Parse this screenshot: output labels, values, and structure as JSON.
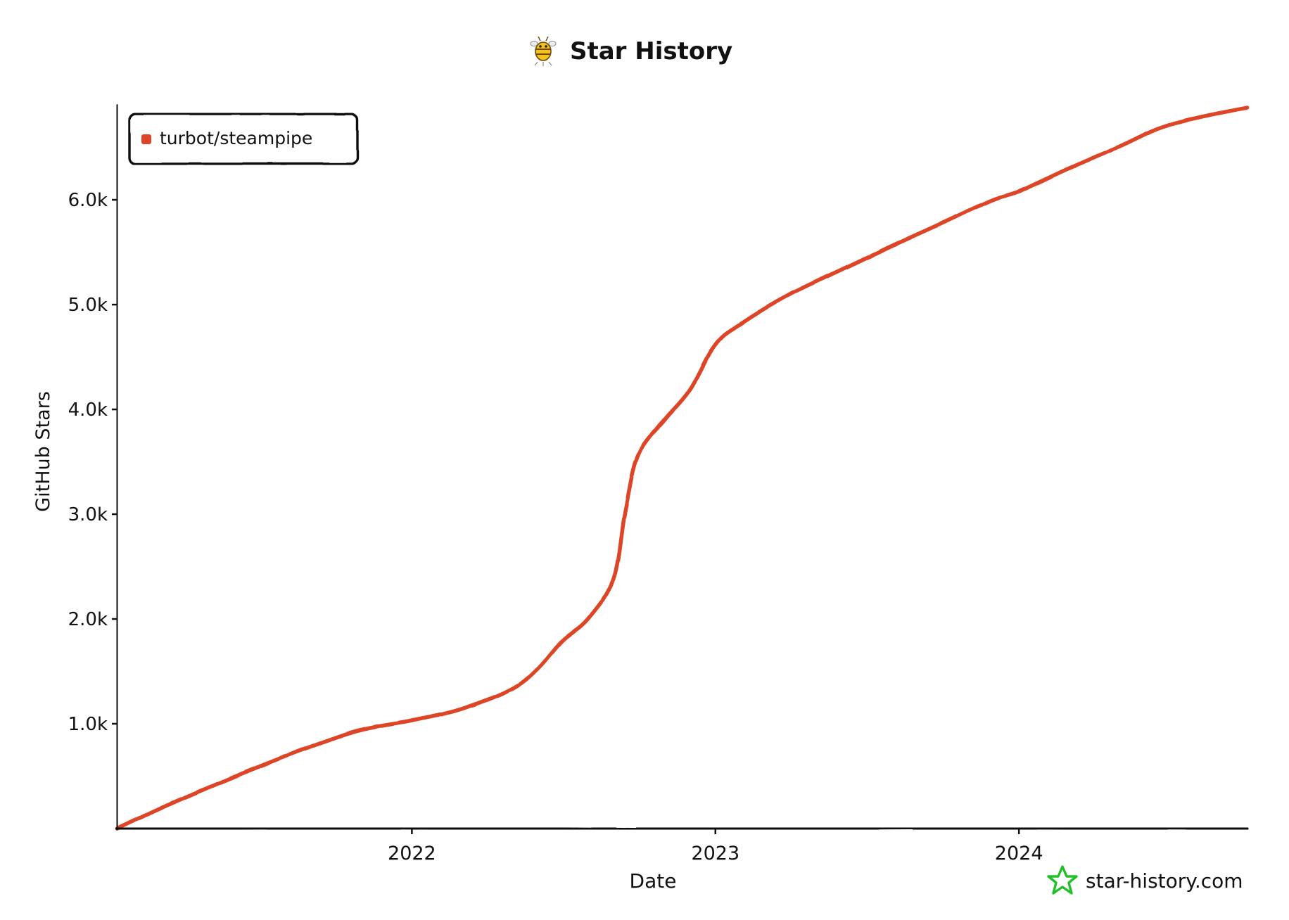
{
  "chart_data": {
    "type": "line",
    "title": "Star History",
    "xlabel": "Date",
    "ylabel": "GitHub Stars",
    "x_ticks": [
      {
        "label": "2022",
        "date": "2022-01-01"
      },
      {
        "label": "2023",
        "date": "2023-01-01"
      },
      {
        "label": "2024",
        "date": "2024-01-01"
      }
    ],
    "y_ticks": [
      {
        "label": "1.0k",
        "value": 1000
      },
      {
        "label": "2.0k",
        "value": 2000
      },
      {
        "label": "3.0k",
        "value": 3000
      },
      {
        "label": "4.0k",
        "value": 4000
      },
      {
        "label": "5.0k",
        "value": 5000
      },
      {
        "label": "6.0k",
        "value": 6000
      }
    ],
    "xlim": [
      "2021-01-12",
      "2024-10-01"
    ],
    "ylim": [
      0,
      6900
    ],
    "grid": false,
    "legend_position": "top-left",
    "series": [
      {
        "name": "turbot/steampipe",
        "color": "#dd4528",
        "points": [
          {
            "date": "2021-01-12",
            "value": 0
          },
          {
            "date": "2021-03-01",
            "value": 180
          },
          {
            "date": "2021-05-01",
            "value": 390
          },
          {
            "date": "2021-07-01",
            "value": 590
          },
          {
            "date": "2021-09-01",
            "value": 780
          },
          {
            "date": "2021-11-01",
            "value": 940
          },
          {
            "date": "2022-01-01",
            "value": 1030
          },
          {
            "date": "2022-03-01",
            "value": 1140
          },
          {
            "date": "2022-05-01",
            "value": 1330
          },
          {
            "date": "2022-06-01",
            "value": 1520
          },
          {
            "date": "2022-07-01",
            "value": 1790
          },
          {
            "date": "2022-08-01",
            "value": 2000
          },
          {
            "date": "2022-09-01",
            "value": 2390
          },
          {
            "date": "2022-09-15",
            "value": 3050
          },
          {
            "date": "2022-10-01",
            "value": 3580
          },
          {
            "date": "2022-11-01",
            "value": 3900
          },
          {
            "date": "2022-12-01",
            "value": 4180
          },
          {
            "date": "2023-01-01",
            "value": 4620
          },
          {
            "date": "2023-02-01",
            "value": 4820
          },
          {
            "date": "2023-04-01",
            "value": 5100
          },
          {
            "date": "2023-06-01",
            "value": 5330
          },
          {
            "date": "2023-08-01",
            "value": 5560
          },
          {
            "date": "2023-10-01",
            "value": 5780
          },
          {
            "date": "2023-12-01",
            "value": 6000
          },
          {
            "date": "2024-01-01",
            "value": 6080
          },
          {
            "date": "2024-03-01",
            "value": 6300
          },
          {
            "date": "2024-05-01",
            "value": 6510
          },
          {
            "date": "2024-07-01",
            "value": 6720
          },
          {
            "date": "2024-10-01",
            "value": 6880
          }
        ]
      }
    ]
  },
  "watermark": {
    "text": "star-history.com",
    "icon": "star-outline-icon",
    "color": "#22c028"
  },
  "title_icon": "bee-mascot-icon"
}
